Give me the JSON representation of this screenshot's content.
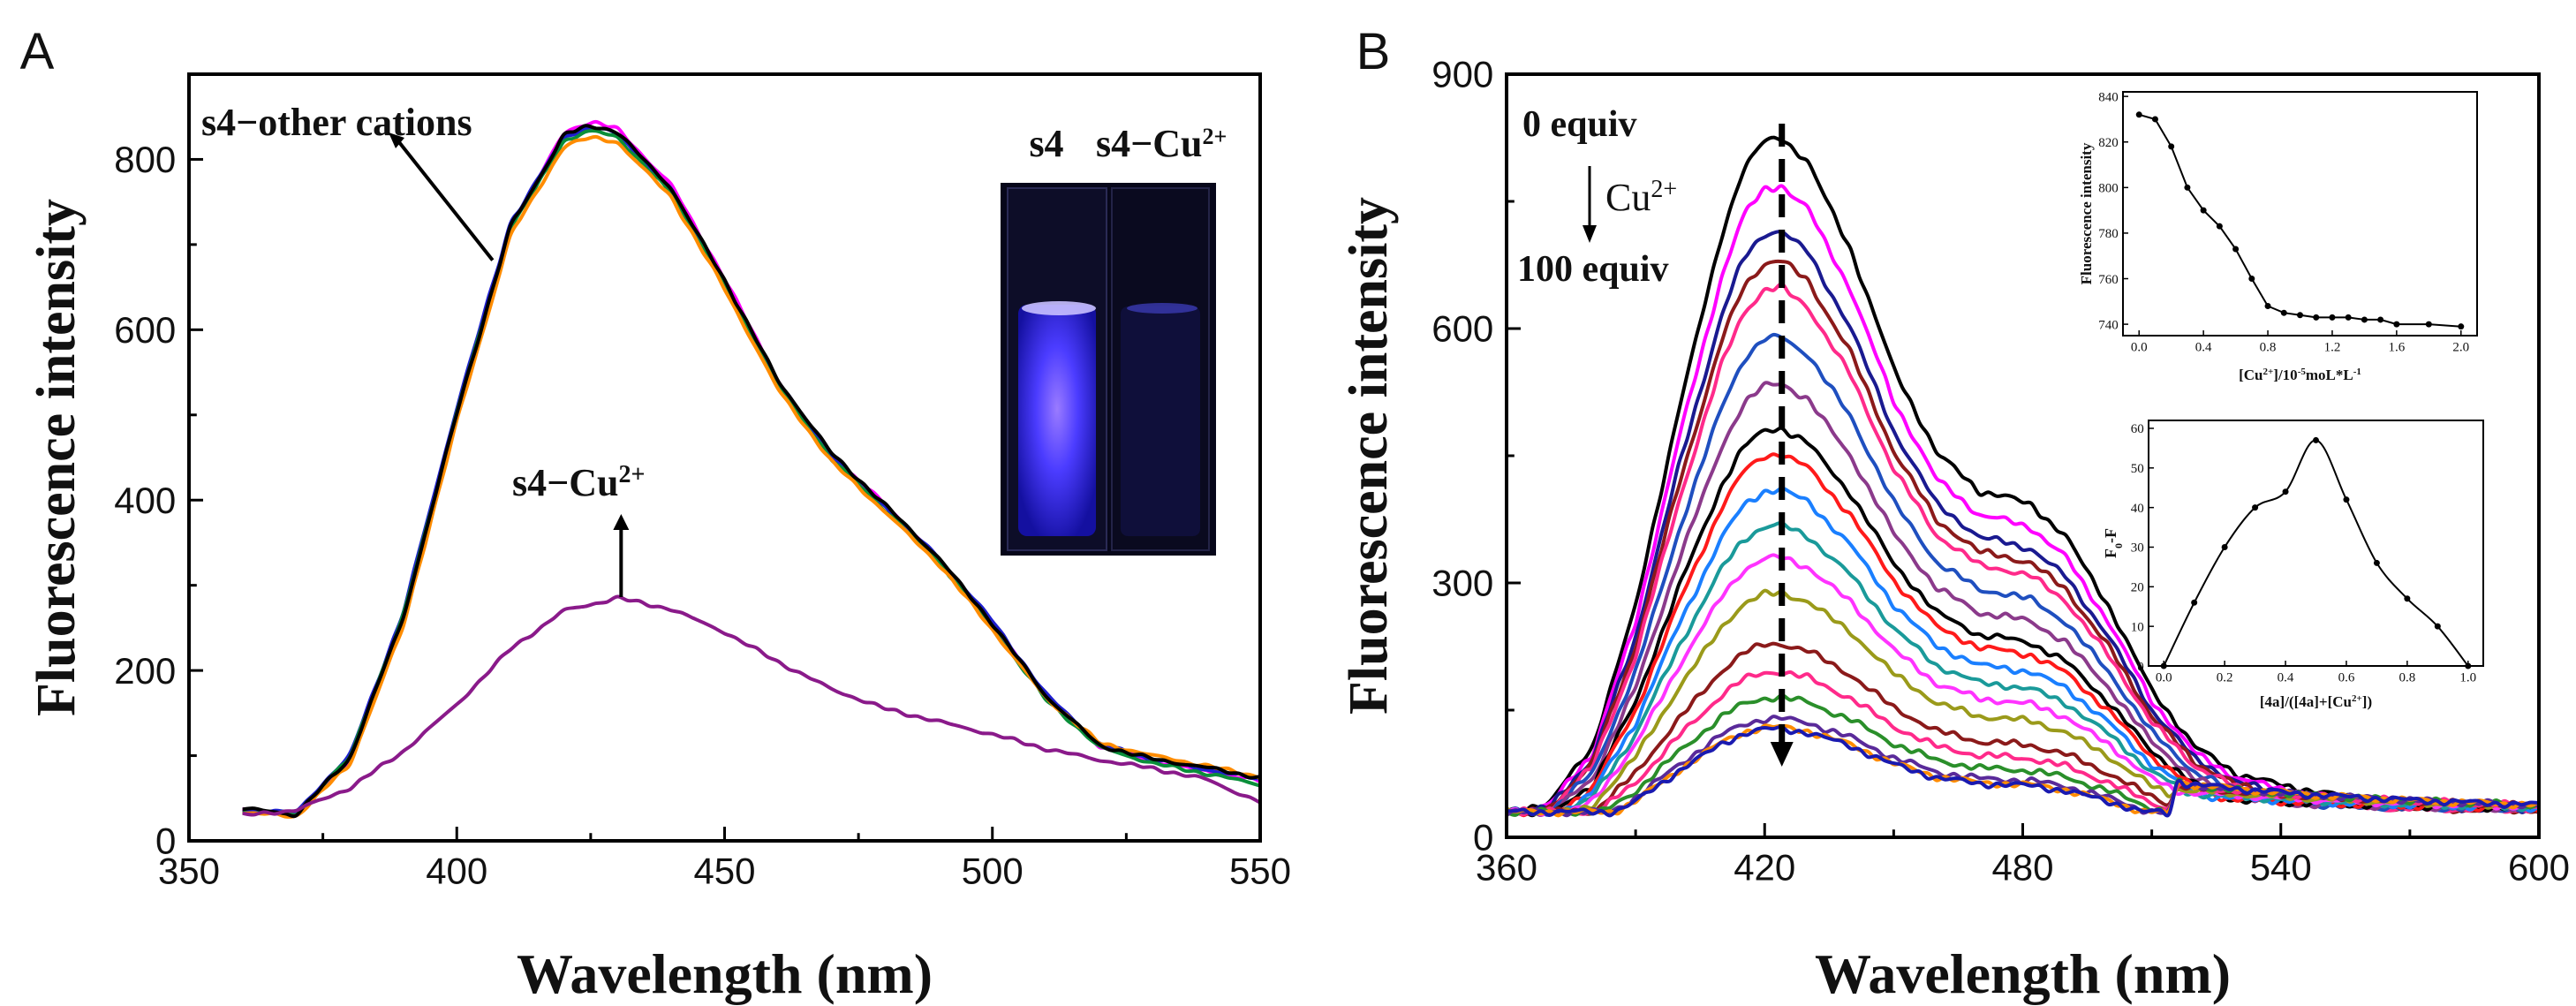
{
  "chart_data": [
    {
      "panel": "A",
      "type": "line",
      "xlabel": "Wavelength (nm)",
      "ylabel": "Fluorescence intensity",
      "xlim": [
        350,
        550
      ],
      "ylim": [
        0,
        900
      ],
      "xticks": [
        350,
        400,
        450,
        500,
        550
      ],
      "yticks": [
        0,
        200,
        400,
        600,
        800
      ],
      "annotations": [
        {
          "text": "s4−other cations",
          "points_to_wavelength": 409
        },
        {
          "text": "s4−Cu",
          "sup": "2+",
          "points_to_wavelength": 432
        }
      ],
      "inset_photo": {
        "labels": [
          "s4",
          "s4−Cu"
        ],
        "label_sup": "2+",
        "left_cuvette": "bright blue fluorescence",
        "right_cuvette": "quenched (dark)"
      },
      "series": [
        {
          "name": "s4-other cations",
          "color": "#ff00ff",
          "x": [
            360,
            370,
            380,
            390,
            400,
            410,
            420,
            425,
            430,
            440,
            450,
            460,
            470,
            480,
            490,
            500,
            510,
            520,
            530,
            540,
            550
          ],
          "y": [
            36,
            30,
            95,
            260,
            500,
            720,
            830,
            845,
            835,
            770,
            660,
            540,
            450,
            395,
            330,
            255,
            170,
            112,
            93,
            82,
            70
          ]
        },
        {
          "name": "s4-other cations",
          "color": "#1f1fd0",
          "x": [
            360,
            370,
            380,
            390,
            400,
            410,
            420,
            425,
            430,
            440,
            450,
            460,
            470,
            480,
            490,
            500,
            510,
            520,
            530,
            540,
            550
          ],
          "y": [
            35,
            34,
            100,
            268,
            508,
            724,
            826,
            838,
            830,
            764,
            655,
            538,
            452,
            392,
            332,
            258,
            172,
            114,
            95,
            84,
            72
          ]
        },
        {
          "name": "s4-other cations",
          "color": "#0a8f3a",
          "x": [
            360,
            370,
            380,
            390,
            400,
            410,
            420,
            425,
            430,
            440,
            450,
            460,
            470,
            480,
            490,
            500,
            510,
            520,
            530,
            540,
            550
          ],
          "y": [
            34,
            32,
            98,
            264,
            503,
            718,
            821,
            834,
            826,
            760,
            652,
            534,
            448,
            388,
            328,
            250,
            166,
            110,
            91,
            79,
            66
          ]
        },
        {
          "name": "s4-other cations",
          "color": "#ff8c00",
          "x": [
            360,
            370,
            380,
            390,
            400,
            410,
            420,
            425,
            430,
            440,
            450,
            460,
            470,
            480,
            490,
            500,
            510,
            520,
            530,
            540,
            550
          ],
          "y": [
            33,
            29,
            90,
            252,
            492,
            710,
            815,
            826,
            820,
            756,
            648,
            530,
            445,
            386,
            325,
            248,
            168,
            115,
            100,
            88,
            75
          ]
        },
        {
          "name": "s4-other cations",
          "color": "#000000",
          "x": [
            360,
            370,
            380,
            390,
            400,
            410,
            420,
            425,
            430,
            440,
            450,
            460,
            470,
            480,
            490,
            500,
            510,
            520,
            530,
            540,
            550
          ],
          "y": [
            38,
            31,
            97,
            262,
            502,
            720,
            828,
            840,
            832,
            766,
            658,
            540,
            455,
            394,
            332,
            255,
            170,
            112,
            96,
            86,
            74
          ]
        },
        {
          "name": "s4-Cu2+",
          "color": "#8a1a8a",
          "x": [
            360,
            370,
            380,
            390,
            400,
            410,
            420,
            430,
            440,
            450,
            460,
            470,
            480,
            490,
            500,
            510,
            520,
            530,
            540,
            550
          ],
          "y": [
            30,
            36,
            62,
            105,
            160,
            225,
            270,
            285,
            272,
            245,
            210,
            178,
            155,
            140,
            125,
            108,
            95,
            85,
            72,
            45
          ]
        }
      ]
    },
    {
      "panel": "B",
      "type": "line",
      "xlabel": "Wavelength (nm)",
      "ylabel": "Fluorescence intensity",
      "xlim": [
        360,
        600
      ],
      "ylim": [
        0,
        900
      ],
      "xticks": [
        360,
        420,
        480,
        540,
        600
      ],
      "yticks": [
        0,
        300,
        600,
        900
      ],
      "annotations": [
        {
          "text": "0 equiv"
        },
        {
          "text": "Cu",
          "sup": "2+"
        },
        {
          "text": "100 equiv"
        }
      ],
      "dashed_arrow_wavelength": 424,
      "peak_wavelength": 424,
      "shoulder_wavelength": 482,
      "series": [
        {
          "name": "0 equiv",
          "color": "#000000",
          "peak": 825
        },
        {
          "color": "#ff00ff",
          "peak": 768
        },
        {
          "color": "#1a1a90",
          "peak": 715
        },
        {
          "color": "#8b1a1a",
          "peak": 680
        },
        {
          "color": "#ff2a8a",
          "peak": 648
        },
        {
          "color": "#1f4fbf",
          "peak": 590
        },
        {
          "color": "#8b3a8b",
          "peak": 535
        },
        {
          "color": "#000000",
          "peak": 482
        },
        {
          "color": "#ff1a1a",
          "peak": 452
        },
        {
          "color": "#1a7fff",
          "peak": 410
        },
        {
          "color": "#1a9a9a",
          "peak": 368
        },
        {
          "color": "#ff33ff",
          "peak": 330
        },
        {
          "color": "#9a9a1a",
          "peak": 288
        },
        {
          "color": "#8b1a1a",
          "peak": 228
        },
        {
          "color": "#ff2a8a",
          "peak": 195
        },
        {
          "color": "#2a8f2a",
          "peak": 165
        },
        {
          "color": "#5a2a9a",
          "peak": 140
        },
        {
          "color": "#ff8c00",
          "peak": 130
        },
        {
          "name": "100 equiv",
          "color": "#1a1ab0",
          "peak": 128
        }
      ]
    },
    {
      "panel": "B-inset-1",
      "type": "line",
      "ylabel": "Fluorescence intensity",
      "xlabel_parts": [
        "[Cu",
        "2+",
        "]/10",
        "-5",
        "moL*L",
        "-1"
      ],
      "xlim": [
        -0.1,
        2.1
      ],
      "ylim": [
        735,
        842
      ],
      "xticks": [
        "0.0",
        "0.4",
        "0.8",
        "1.2",
        "1.6",
        "2.0"
      ],
      "yticks": [
        740,
        760,
        780,
        800,
        820,
        840
      ],
      "x": [
        0.0,
        0.1,
        0.2,
        0.3,
        0.4,
        0.5,
        0.6,
        0.7,
        0.8,
        0.9,
        1.0,
        1.1,
        1.2,
        1.3,
        1.4,
        1.5,
        1.6,
        1.8,
        2.0
      ],
      "y": [
        832,
        830,
        818,
        800,
        790,
        783,
        773,
        760,
        748,
        745,
        744,
        743,
        743,
        743,
        742,
        742,
        740,
        740,
        739
      ]
    },
    {
      "panel": "B-inset-2",
      "type": "line",
      "ylabel_parts": [
        "F",
        "0",
        "-F"
      ],
      "xlabel_parts": [
        "[4a]/([4a]+[Cu",
        "2+",
        "])"
      ],
      "xlim": [
        -0.05,
        1.05
      ],
      "ylim": [
        0,
        62
      ],
      "xticks": [
        "0.0",
        "0.2",
        "0.4",
        "0.6",
        "0.8",
        "1.0"
      ],
      "yticks": [
        0,
        10,
        20,
        30,
        40,
        50,
        60
      ],
      "x": [
        0.0,
        0.1,
        0.2,
        0.3,
        0.4,
        0.5,
        0.6,
        0.7,
        0.8,
        0.9,
        1.0
      ],
      "y": [
        0,
        16,
        30,
        40,
        44,
        57,
        42,
        26,
        17,
        10,
        0
      ]
    }
  ],
  "panel_labels": [
    "A",
    "B"
  ]
}
